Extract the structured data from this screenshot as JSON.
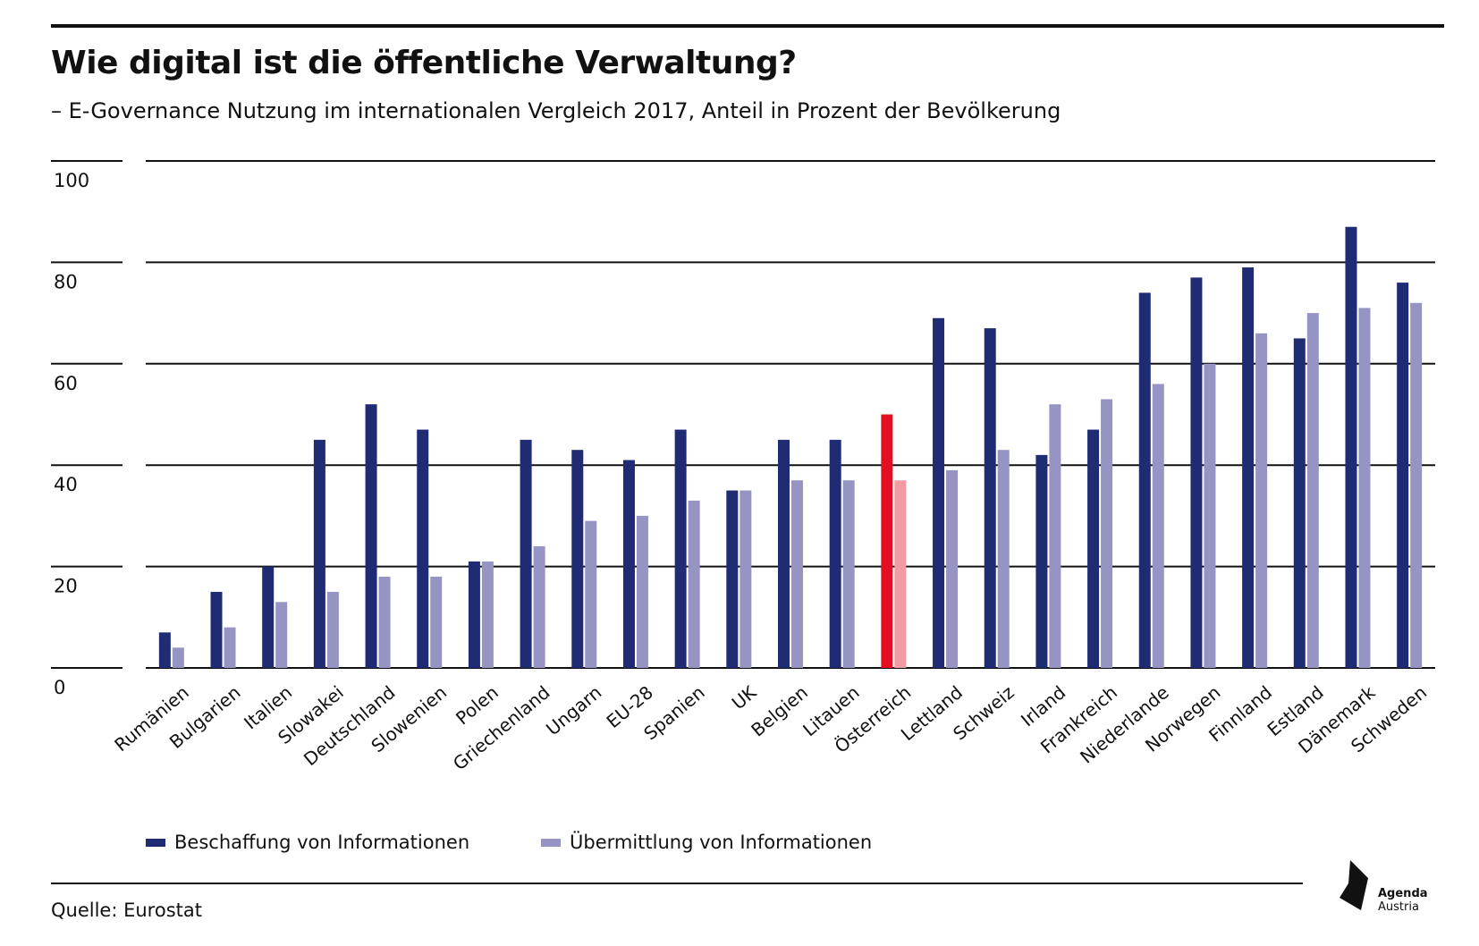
{
  "title": "Wie digital ist die öffentliche Verwaltung?",
  "subtitle": "– E-Governance Nutzung im internationalen Vergleich 2017, Anteil in Prozent der Bevölkerung",
  "source": "Quelle: Eurostat",
  "logo": {
    "line1": "Agenda",
    "line2": "Austria"
  },
  "colors": {
    "series1": "#1f2c74",
    "series2": "#9694c3",
    "highlight1": "#e10f21",
    "highlight2": "#f29ba2"
  },
  "chart_data": {
    "type": "bar",
    "categories": [
      "Rumänien",
      "Bulgarien",
      "Italien",
      "Slowakei",
      "Deutschland",
      "Slowenien",
      "Polen",
      "Griechenland",
      "Ungarn",
      "EU-28",
      "Spanien",
      "UK",
      "Belgien",
      "Litauen",
      "Österreich",
      "Lettland",
      "Schweiz",
      "Irland",
      "Frankreich",
      "Niederlande",
      "Norwegen",
      "Finnland",
      "Estland",
      "Dänemark",
      "Schweden"
    ],
    "highlight_category": "Österreich",
    "series": [
      {
        "name": "Beschaffung von Informationen",
        "values": [
          7,
          15,
          20,
          45,
          52,
          47,
          21,
          45,
          43,
          41,
          47,
          35,
          45,
          45,
          50,
          69,
          67,
          42,
          47,
          74,
          77,
          79,
          65,
          87,
          76
        ]
      },
      {
        "name": "Übermittlung von Informationen",
        "values": [
          4,
          8,
          13,
          15,
          18,
          18,
          21,
          24,
          29,
          30,
          33,
          35,
          37,
          37,
          37,
          39,
          43,
          52,
          53,
          56,
          60,
          66,
          70,
          71,
          72
        ]
      }
    ],
    "yticks": [
      0,
      20,
      40,
      60,
      80,
      100
    ],
    "ylim": [
      0,
      100
    ],
    "grid": true,
    "legend_position": "bottom-left"
  }
}
